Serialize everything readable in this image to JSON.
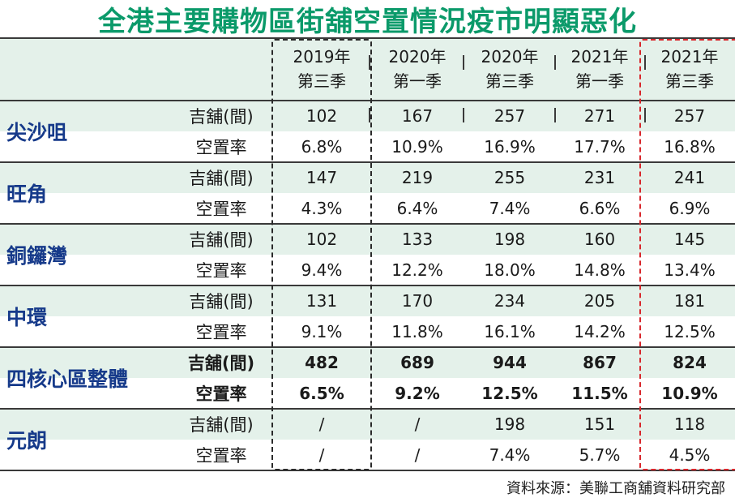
{
  "colors": {
    "title": "#0b9a6a",
    "region": "#163a8a",
    "stripe": "#e4f1ea",
    "highlight_box": "#d8262b",
    "frame_box": "#2a2a2a"
  },
  "chart_data": {
    "type": "table",
    "title": "全港主要購物區街舖空置情況疫市明顯惡化",
    "columns": [
      {
        "year": "2019年",
        "quarter": "第三季"
      },
      {
        "year": "2020年",
        "quarter": "第一季"
      },
      {
        "year": "2020年",
        "quarter": "第三季"
      },
      {
        "year": "2021年",
        "quarter": "第一季"
      },
      {
        "year": "2021年",
        "quarter": "第三季"
      }
    ],
    "rows": [
      {
        "region": "尖沙咀",
        "bold": false,
        "shops_label": "吉舖(間)",
        "shops": [
          "102",
          "167",
          "257",
          "271",
          "257"
        ],
        "rate_label": "空置率",
        "rates": [
          "6.8%",
          "10.9%",
          "16.9%",
          "17.7%",
          "16.8%"
        ]
      },
      {
        "region": "旺角",
        "bold": false,
        "shops_label": "吉舖(間)",
        "shops": [
          "147",
          "219",
          "255",
          "231",
          "241"
        ],
        "rate_label": "空置率",
        "rates": [
          "4.3%",
          "6.4%",
          "7.4%",
          "6.6%",
          "6.9%"
        ]
      },
      {
        "region": "銅鑼灣",
        "bold": false,
        "shops_label": "吉舖(間)",
        "shops": [
          "102",
          "133",
          "198",
          "160",
          "145"
        ],
        "rate_label": "空置率",
        "rates": [
          "9.4%",
          "12.2%",
          "18.0%",
          "14.8%",
          "13.4%"
        ]
      },
      {
        "region": "中環",
        "bold": false,
        "shops_label": "吉舖(間)",
        "shops": [
          "131",
          "170",
          "234",
          "205",
          "181"
        ],
        "rate_label": "空置率",
        "rates": [
          "9.1%",
          "11.8%",
          "16.1%",
          "14.2%",
          "12.5%"
        ]
      },
      {
        "region": "四核心區整體",
        "bold": true,
        "shops_label": "吉舖(間)",
        "shops": [
          "482",
          "689",
          "944",
          "867",
          "824"
        ],
        "rate_label": "空置率",
        "rates": [
          "6.5%",
          "9.2%",
          "12.5%",
          "11.5%",
          "10.9%"
        ]
      },
      {
        "region": "元朗",
        "bold": false,
        "shops_label": "吉舖(間)",
        "shops": [
          "/",
          "/",
          "198",
          "151",
          "118"
        ],
        "rate_label": "空置率",
        "rates": [
          "/",
          "/",
          "7.4%",
          "5.7%",
          "4.5%"
        ]
      }
    ],
    "source": "資料來源：美聯工商舖資料研究部"
  }
}
